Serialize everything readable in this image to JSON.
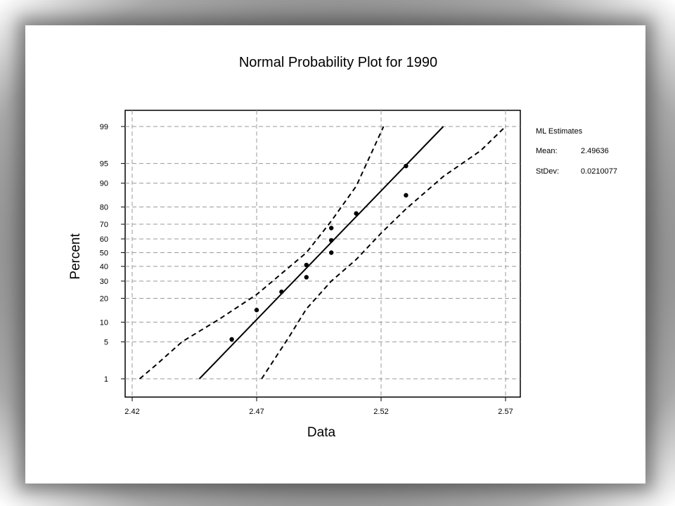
{
  "chart_data": {
    "type": "scatter",
    "title": "Normal Probability Plot for 1990",
    "xlabel": "Data",
    "ylabel": "Percent",
    "x_ticks": [
      "2.42",
      "2.47",
      "2.52",
      "2.57"
    ],
    "y_ticks": [
      "1",
      "5",
      "10",
      "20",
      "30",
      "40",
      "50",
      "60",
      "70",
      "80",
      "90",
      "95",
      "99"
    ],
    "xlim": [
      2.42,
      2.57
    ],
    "ylim_percent": [
      1,
      99
    ],
    "y_scale": "normal-probability",
    "grid": true,
    "legend": {
      "heading": "ML Estimates",
      "rows": [
        {
          "label": "Mean:",
          "value": "2.49636"
        },
        {
          "label": "StDev:",
          "value": "0.0210077"
        }
      ]
    },
    "points": [
      {
        "x": 2.46,
        "y": 5.5
      },
      {
        "x": 2.47,
        "y": 14.5
      },
      {
        "x": 2.48,
        "y": 23.5
      },
      {
        "x": 2.49,
        "y": 32.5
      },
      {
        "x": 2.49,
        "y": 41
      },
      {
        "x": 2.5,
        "y": 50
      },
      {
        "x": 2.5,
        "y": 59
      },
      {
        "x": 2.5,
        "y": 67.5
      },
      {
        "x": 2.51,
        "y": 76.5
      },
      {
        "x": 2.53,
        "y": 85.5
      },
      {
        "x": 2.53,
        "y": 94.5
      }
    ],
    "fit_line": [
      {
        "x": 2.447,
        "y": 1
      },
      {
        "x": 2.545,
        "y": 99
      }
    ],
    "lower_band": [
      {
        "x": 2.423,
        "y": 1
      },
      {
        "x": 2.43,
        "y": 2
      },
      {
        "x": 2.44,
        "y": 5
      },
      {
        "x": 2.455,
        "y": 11
      },
      {
        "x": 2.47,
        "y": 22
      },
      {
        "x": 2.49,
        "y": 50
      },
      {
        "x": 2.5,
        "y": 72
      },
      {
        "x": 2.51,
        "y": 89
      },
      {
        "x": 2.521,
        "y": 99
      }
    ],
    "upper_band": [
      {
        "x": 2.472,
        "y": 1
      },
      {
        "x": 2.483,
        "y": 6
      },
      {
        "x": 2.49,
        "y": 15
      },
      {
        "x": 2.5,
        "y": 30
      },
      {
        "x": 2.51,
        "y": 45
      },
      {
        "x": 2.52,
        "y": 64
      },
      {
        "x": 2.53,
        "y": 79
      },
      {
        "x": 2.545,
        "y": 92
      },
      {
        "x": 2.56,
        "y": 97
      },
      {
        "x": 2.57,
        "y": 99
      }
    ]
  }
}
